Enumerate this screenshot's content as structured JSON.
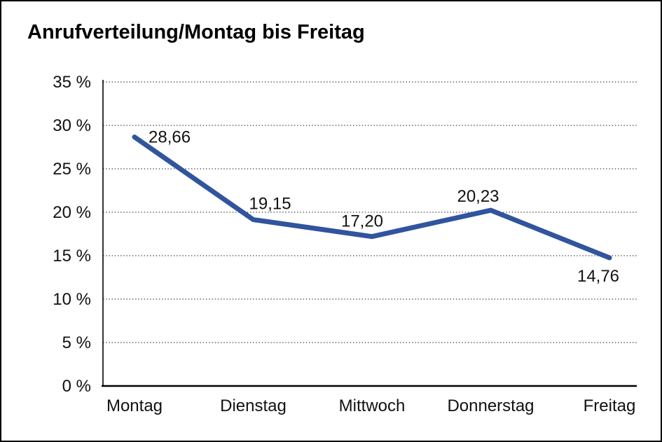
{
  "window": {
    "background": "#FFFFFF",
    "border_color": "#000000"
  },
  "chart_data": {
    "type": "line",
    "title": "Anrufverteilung/Montag bis Freitag",
    "categories": [
      "Montag",
      "Dienstag",
      "Mittwoch",
      "Donnerstag",
      "Freitag"
    ],
    "values": [
      28.66,
      19.15,
      17.2,
      20.23,
      14.76
    ],
    "point_labels": [
      "28,66",
      "19,15",
      "17,20",
      "20,23",
      "14,76"
    ],
    "y_tick_labels": [
      "35 %",
      "30 %",
      "25 %",
      "20 %",
      "15 %",
      "10 %",
      "5 %",
      "0 %"
    ],
    "y_tick_values": [
      35,
      30,
      25,
      20,
      15,
      10,
      5,
      0
    ],
    "ylim": [
      0,
      35
    ],
    "y_tick_interval": 5,
    "xlabel": "",
    "ylabel": "",
    "grid": "horizontal dotted",
    "legend": "none",
    "data_labels_shown": true,
    "line_color": "#31549E",
    "axis_color": "#000000",
    "grid_color": "#3C3C3C",
    "text_color": "#111111"
  }
}
